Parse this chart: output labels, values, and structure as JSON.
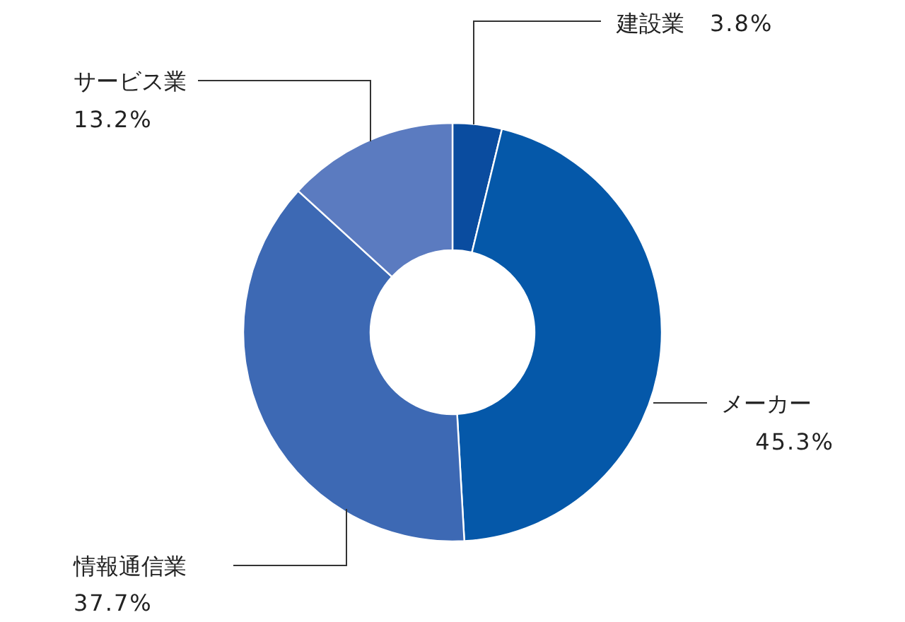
{
  "chart_data": {
    "type": "donut",
    "categories": [
      "建設業",
      "メーカー",
      "情報通信業",
      "サービス業"
    ],
    "values": [
      3.8,
      45.3,
      37.7,
      13.2
    ],
    "colors": [
      "#0a4c9f",
      "#0558a9",
      "#3d69b4",
      "#5b7bc0"
    ],
    "value_labels": [
      "3.8%",
      "45.3%",
      "37.7%",
      "13.2%"
    ]
  }
}
